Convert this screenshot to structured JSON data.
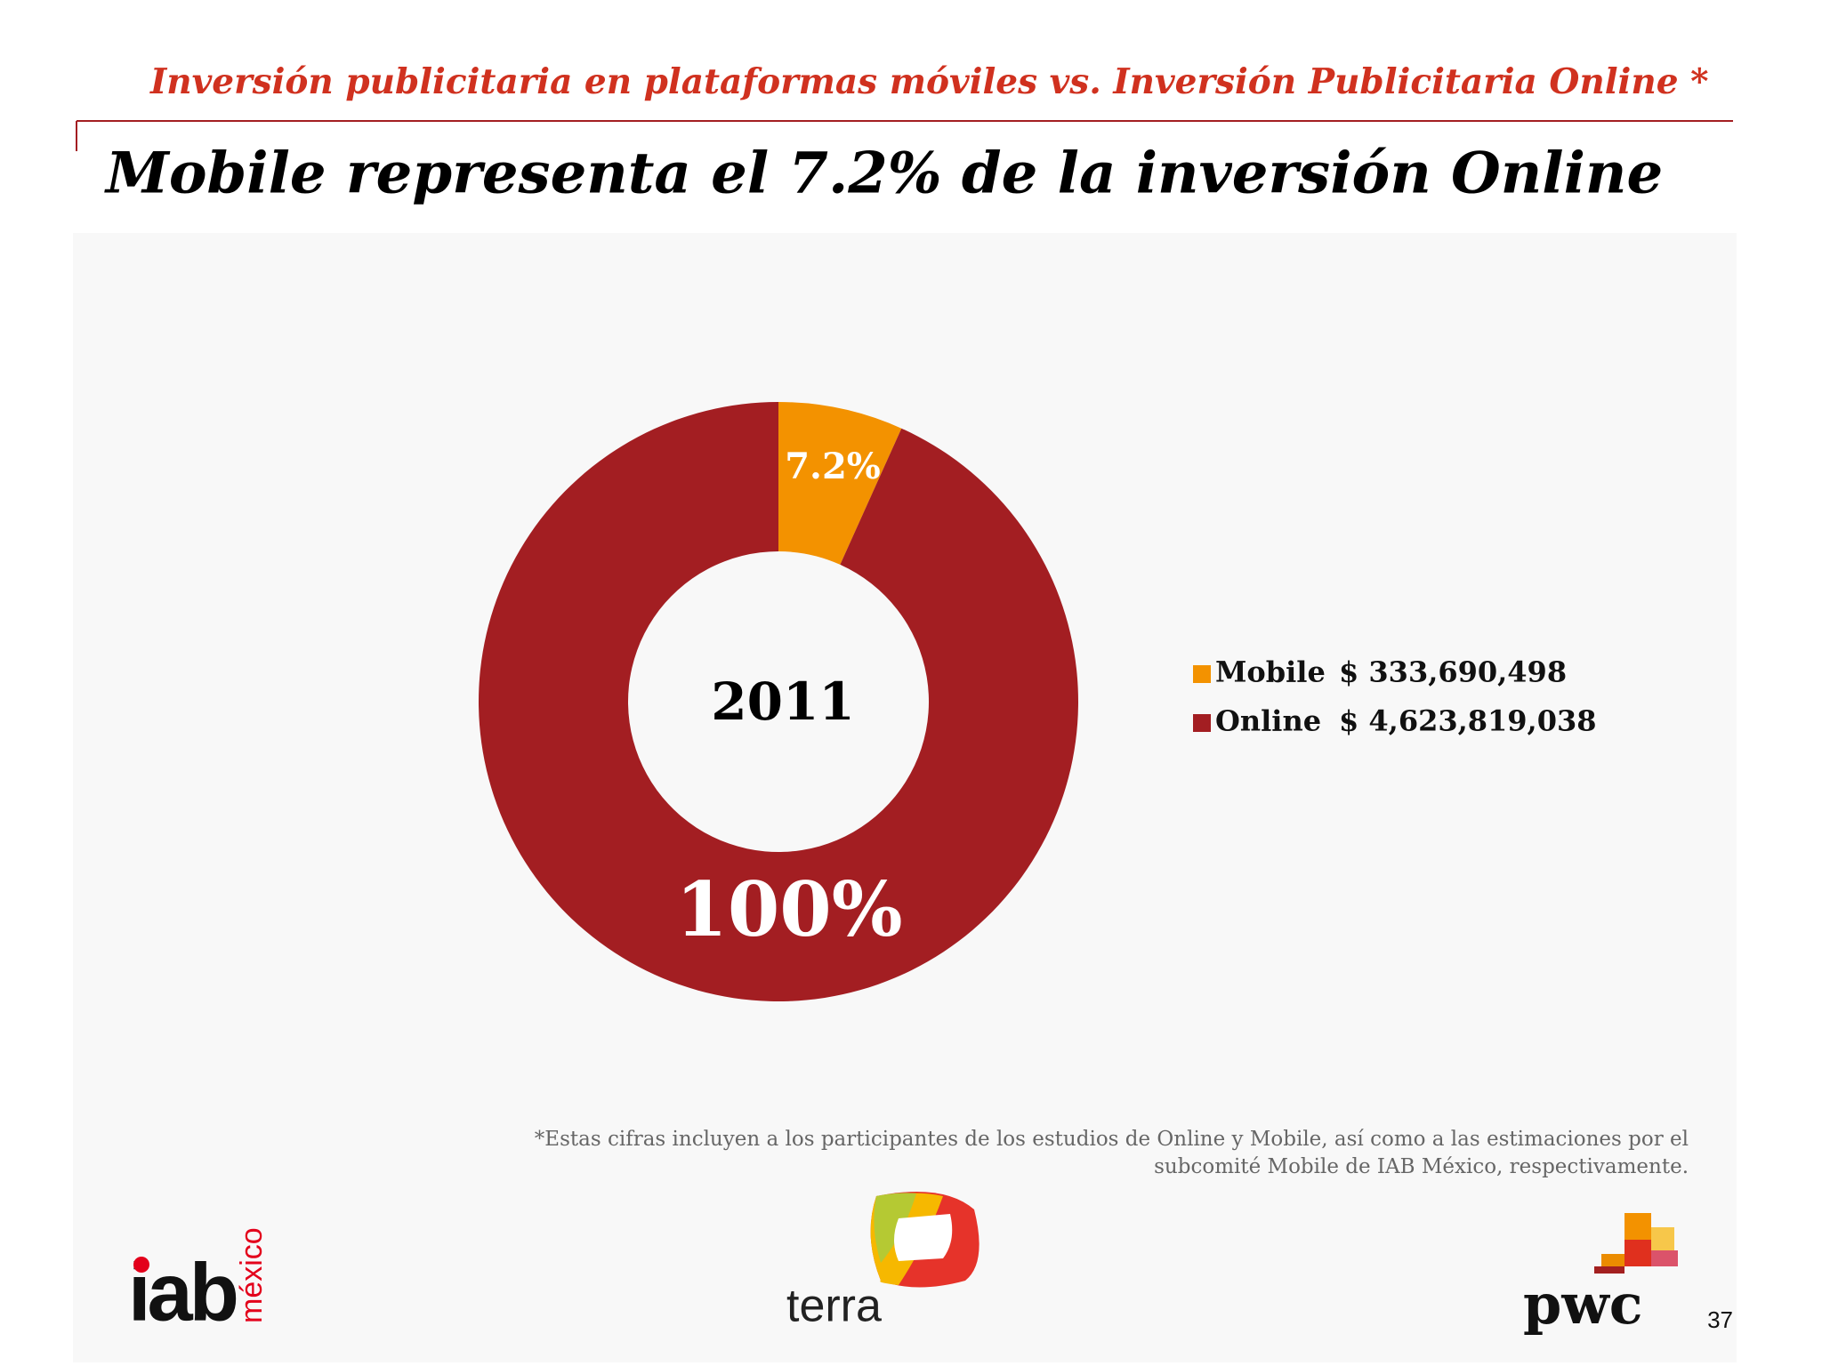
{
  "header": {
    "subtitle": "Inversión publicitaria en plataformas móviles vs. Inversión Publicitaria Online *",
    "title": "Mobile representa el 7.2% de la inversión Online"
  },
  "chart_data": {
    "type": "donut",
    "center_label": "2011",
    "categories": [
      "Mobile",
      "Online"
    ],
    "values": [
      333690498,
      4623819038
    ],
    "value_labels": [
      "$ 333,690,498",
      "$ 4,623,819,038"
    ],
    "slice_labels": [
      "7.2%",
      "100%"
    ],
    "colors": [
      "#f39200",
      "#a31e22"
    ]
  },
  "footnote": [
    "*Estas cifras incluyen a los participantes de los estudios de Online y Mobile, así  como a las estimaciones por el",
    "subcomité Mobile de IAB México, respectivamente."
  ],
  "logos": {
    "iab": "iab",
    "iab_country": "méxico",
    "terra": "terra",
    "pwc": "pwc"
  },
  "page_number": "37"
}
